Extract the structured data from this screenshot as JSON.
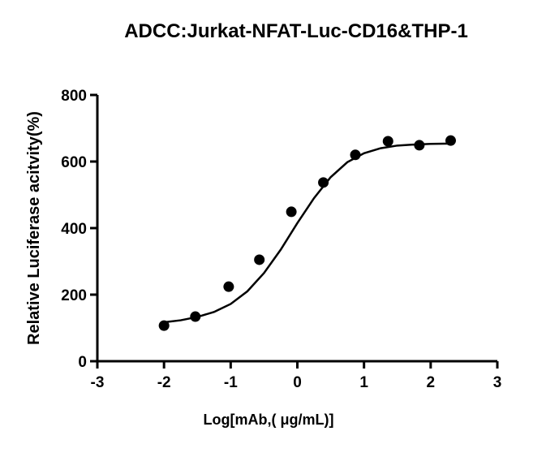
{
  "chart_data": {
    "type": "scatter",
    "title": "ADCC:Jurkat-NFAT-Luc-CD16&THP-1",
    "x_label": "Log[mAb,( μg/mL)]",
    "y_label": "Relative Luciferase acitvity(%)",
    "xlim": [
      -3,
      3
    ],
    "xticks": [
      -3,
      -2,
      -1,
      0,
      1,
      2,
      3
    ],
    "ylim": [
      0,
      800
    ],
    "yticks": [
      0,
      200,
      400,
      600,
      800
    ],
    "color": "#000000",
    "points": {
      "x": [
        -2.0,
        -1.53,
        -1.03,
        -0.57,
        -0.09,
        0.39,
        0.87,
        1.36,
        1.83,
        2.3
      ],
      "values": [
        107,
        134,
        224,
        305,
        449,
        537,
        620,
        661,
        649,
        663
      ]
    },
    "curve": {
      "x": [
        -2,
        -1.75,
        -1.5,
        -1.25,
        -1,
        -0.75,
        -0.5,
        -0.25,
        0,
        0.25,
        0.5,
        0.75,
        1,
        1.25,
        1.5,
        1.75,
        2,
        2.3
      ],
      "values": [
        117,
        123,
        133,
        148,
        172,
        210,
        265,
        335,
        415,
        490,
        553,
        598,
        625,
        640,
        648,
        651,
        653,
        654
      ]
    }
  }
}
